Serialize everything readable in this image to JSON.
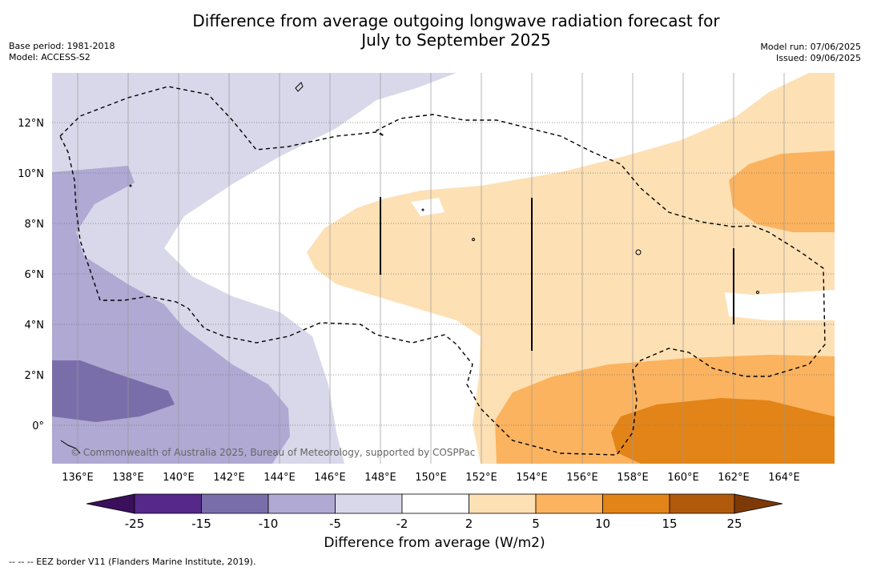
{
  "title": "Difference from average outgoing longwave radiation forecast for\nJuly to September 2025",
  "meta_left": {
    "base_period": "Base period: 1981-2018",
    "model": "Model: ACCESS-S2"
  },
  "meta_right": {
    "model_run": "Model run: 07/06/2025",
    "issued": "Issued: 09/06/2025"
  },
  "map": {
    "lat_labels": [
      "12°N",
      "10°N",
      "8°N",
      "6°N",
      "4°N",
      "2°N",
      "0°"
    ],
    "lon_labels": [
      "136°E",
      "138°E",
      "140°E",
      "142°E",
      "144°E",
      "146°E",
      "148°E",
      "150°E",
      "152°E",
      "154°E",
      "156°E",
      "158°E",
      "160°E",
      "162°E",
      "164°E"
    ],
    "copyright": "© Commonwealth of Australia 2025, Bureau of Meteorology, supported by COSPPac"
  },
  "colorbar": {
    "title": "Difference from average (W/m2)",
    "ticks": [
      "-25",
      "-15",
      "-10",
      "-5",
      "-2",
      "2",
      "5",
      "10",
      "15",
      "25"
    ],
    "colors": {
      "below_-25": "#3b0f5c",
      "-25_-15": "#55288a",
      "-15_-10": "#7a6eaa",
      "-10_-5": "#afa9d3",
      "-5_-2": "#d8d8ea",
      "-2_2": "#ffffff",
      "2_5": "#fde0b4",
      "5_10": "#fbb35f",
      "10_15": "#e28418",
      "15_25": "#b25a0c",
      "above_25": "#7d3a06"
    }
  },
  "footnote": "--  --  -- EEZ border V11 (Flanders Marine Institute, 2019)."
}
